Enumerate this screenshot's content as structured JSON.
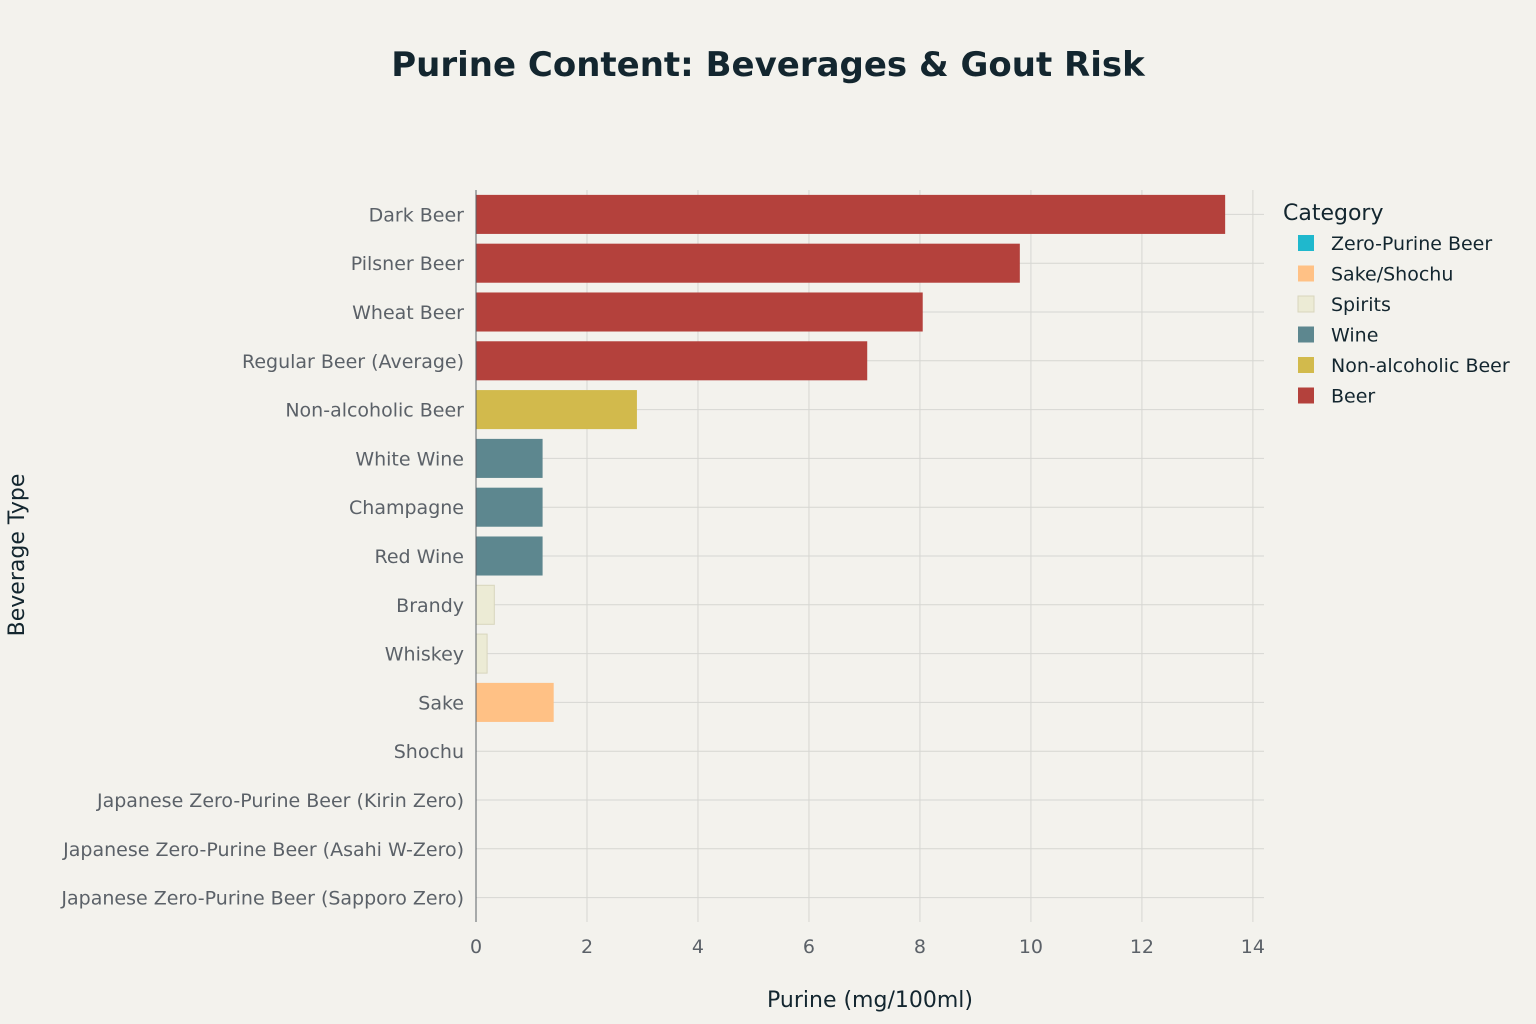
{
  "chart_data": {
    "type": "bar",
    "orientation": "horizontal",
    "title": "Purine Content: Beverages & Gout Risk",
    "xlabel": "Purine (mg/100ml)",
    "ylabel": "Beverage Type",
    "xlim": [
      0,
      14.2
    ],
    "xticks": [
      0,
      2,
      4,
      6,
      8,
      10,
      12,
      14
    ],
    "grid": true,
    "legend": {
      "title": "Category",
      "placement": "right-top",
      "items": [
        {
          "name": "Zero-Purine Beer",
          "color": "#1fb8cd"
        },
        {
          "name": "Sake/Shochu",
          "color": "#ffc185"
        },
        {
          "name": "Spirits",
          "color": "#ecebd5"
        },
        {
          "name": "Wine",
          "color": "#5d878f"
        },
        {
          "name": "Non-alcoholic Beer",
          "color": "#d2ba4c"
        },
        {
          "name": "Beer",
          "color": "#b4413c"
        }
      ]
    },
    "bars": [
      {
        "label": "Dark Beer",
        "value": 13.5,
        "category": "Beer"
      },
      {
        "label": "Pilsner Beer",
        "value": 9.8,
        "category": "Beer"
      },
      {
        "label": "Wheat Beer",
        "value": 8.05,
        "category": "Beer"
      },
      {
        "label": "Regular Beer (Average)",
        "value": 7.05,
        "category": "Beer"
      },
      {
        "label": "Non-alcoholic Beer",
        "value": 2.9,
        "category": "Non-alcoholic Beer"
      },
      {
        "label": "White Wine",
        "value": 1.2,
        "category": "Wine"
      },
      {
        "label": "Champagne",
        "value": 1.2,
        "category": "Wine"
      },
      {
        "label": "Red Wine",
        "value": 1.2,
        "category": "Wine"
      },
      {
        "label": "Brandy",
        "value": 0.33,
        "category": "Spirits"
      },
      {
        "label": "Whiskey",
        "value": 0.2,
        "category": "Spirits"
      },
      {
        "label": "Sake",
        "value": 1.4,
        "category": "Sake/Shochu"
      },
      {
        "label": "Shochu",
        "value": 0,
        "category": "Sake/Shochu"
      },
      {
        "label": "Japanese Zero-Purine Beer (Kirin Zero)",
        "value": 0,
        "category": "Zero-Purine Beer"
      },
      {
        "label": "Japanese Zero-Purine Beer (Asahi W-Zero)",
        "value": 0,
        "category": "Zero-Purine Beer"
      },
      {
        "label": "Japanese Zero-Purine Beer (Sapporo Zero)",
        "value": 0,
        "category": "Zero-Purine Beer"
      }
    ]
  }
}
